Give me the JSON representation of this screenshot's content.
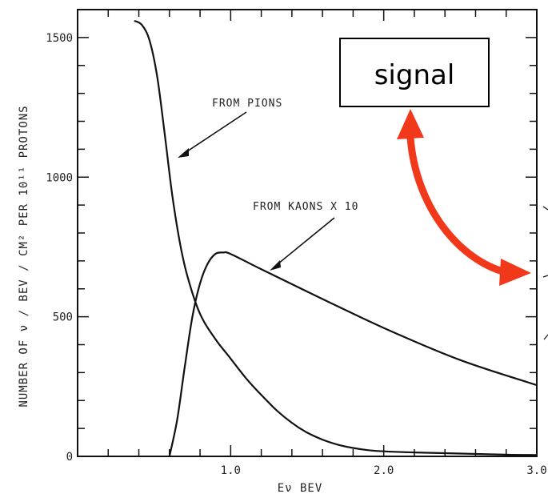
{
  "chart_data": {
    "type": "line",
    "xlabel": "Eν BEV",
    "ylabel": "NUMBER OF ν / BEV / CM² PER 10¹¹ PROTONS",
    "xlim": [
      0,
      3.0
    ],
    "ylim": [
      0,
      1600
    ],
    "x_ticks": [
      1.0,
      2.0,
      3.0
    ],
    "x_tick_labels": [
      "1.0",
      "2.0",
      "3.0"
    ],
    "y_ticks": [
      0,
      500,
      1000,
      1500
    ],
    "y_tick_labels": [
      "0",
      "500",
      "1000",
      "1500"
    ],
    "grid": false,
    "series": [
      {
        "name": "FROM PIONS",
        "x": [
          0.37,
          0.42,
          0.47,
          0.52,
          0.57,
          0.62,
          0.67,
          0.72,
          0.8,
          0.9,
          1.0,
          1.1,
          1.2,
          1.3,
          1.4,
          1.5,
          1.6,
          1.7,
          1.8,
          1.9,
          2.0,
          2.2,
          2.5,
          2.8,
          3.0
        ],
        "y": [
          1560,
          1545,
          1490,
          1360,
          1150,
          930,
          760,
          640,
          510,
          420,
          350,
          280,
          220,
          165,
          120,
          85,
          60,
          42,
          30,
          22,
          18,
          14,
          10,
          6,
          5
        ]
      },
      {
        "name": "FROM KAONS X 10",
        "x": [
          0.6,
          0.65,
          0.7,
          0.75,
          0.8,
          0.85,
          0.9,
          0.95,
          1.0,
          1.2,
          1.5,
          2.0,
          2.5,
          3.0
        ],
        "y": [
          0,
          130,
          320,
          500,
          620,
          690,
          725,
          730,
          725,
          670,
          590,
          460,
          345,
          255
        ]
      }
    ],
    "annotations": [
      {
        "text": "FROM PIONS"
      },
      {
        "text": "FROM KAONS X 10"
      }
    ]
  },
  "overlay": {
    "signal_label": "signal",
    "arrow_color": "#f2381a"
  }
}
